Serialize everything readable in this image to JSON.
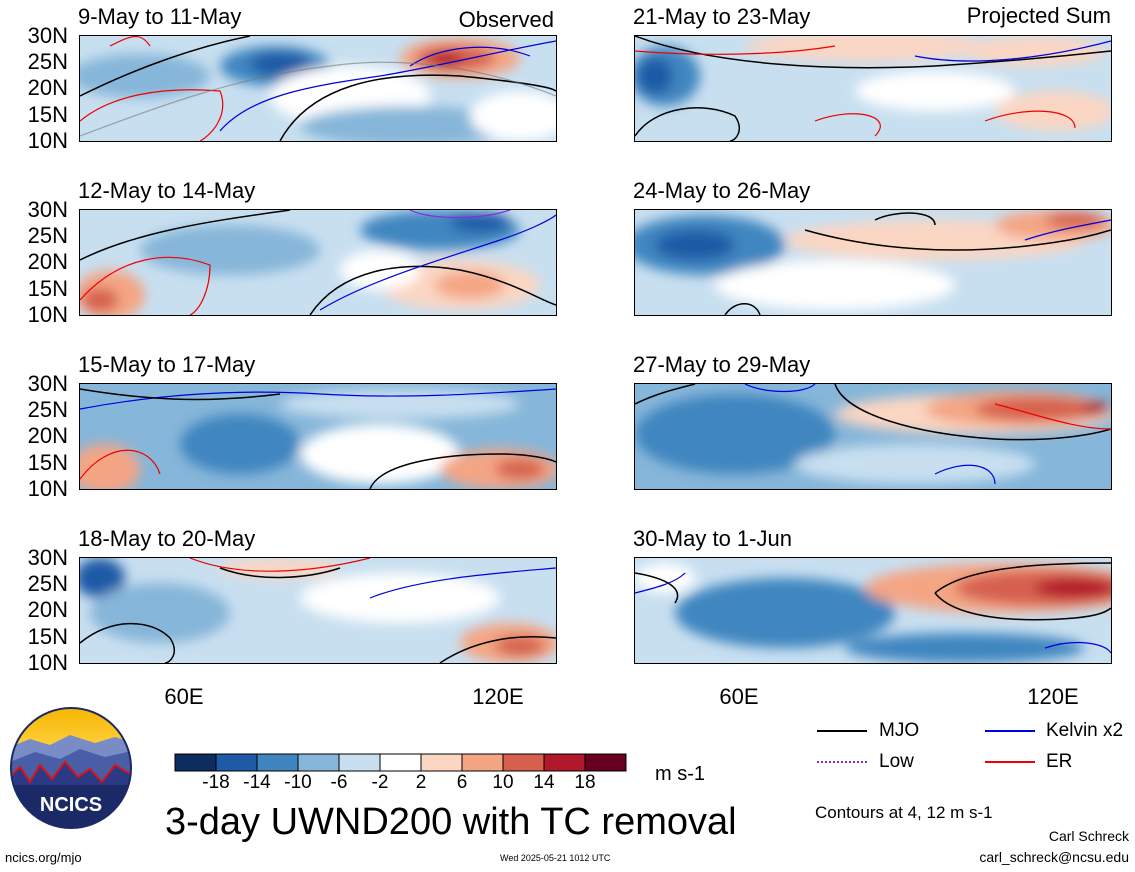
{
  "header": {
    "left_label": "Observed",
    "right_label": "Projected Sum"
  },
  "panels": [
    {
      "id": "p1",
      "title": "9-May to 11-May"
    },
    {
      "id": "p2",
      "title": "12-May to 14-May"
    },
    {
      "id": "p3",
      "title": "15-May to 17-May"
    },
    {
      "id": "p4",
      "title": "18-May to 20-May"
    },
    {
      "id": "p5",
      "title": "21-May to 23-May"
    },
    {
      "id": "p6",
      "title": "24-May to 26-May"
    },
    {
      "id": "p7",
      "title": "27-May to 29-May"
    },
    {
      "id": "p8",
      "title": "30-May to 1-Jun"
    }
  ],
  "lat_labels": [
    "30N",
    "25N",
    "20N",
    "15N",
    "10N"
  ],
  "lon_labels": [
    "60E",
    "120E"
  ],
  "colorbar": {
    "ticks": [
      "-18",
      "-14",
      "-10",
      "-6",
      "-2",
      "2",
      "6",
      "10",
      "14",
      "18"
    ],
    "colors": [
      "#0d2d5e",
      "#1f5aa6",
      "#3f86c0",
      "#86b6d9",
      "#c8dff0",
      "#ffffff",
      "#fbd6c3",
      "#f4a584",
      "#d6604d",
      "#b2182b",
      "#67001f"
    ],
    "units": "m s-1"
  },
  "main_title": "3-day UWND200 with TC removal",
  "legend": [
    {
      "label": "MJO",
      "color": "#000000"
    },
    {
      "label": "Kelvin x2",
      "color": "#0000dd"
    },
    {
      "label": "Low",
      "color": "#8a2be2"
    },
    {
      "label": "ER",
      "color": "#ee0000"
    }
  ],
  "contours_note": "Contours at 4, 12 m s-1",
  "author": "Carl Schreck",
  "email": "carl_schreck@ncsu.edu",
  "site": "ncics.org/mjo",
  "timestamp": "Wed 2025-05-21 1012 UTC",
  "logo_text": "NCICS"
}
